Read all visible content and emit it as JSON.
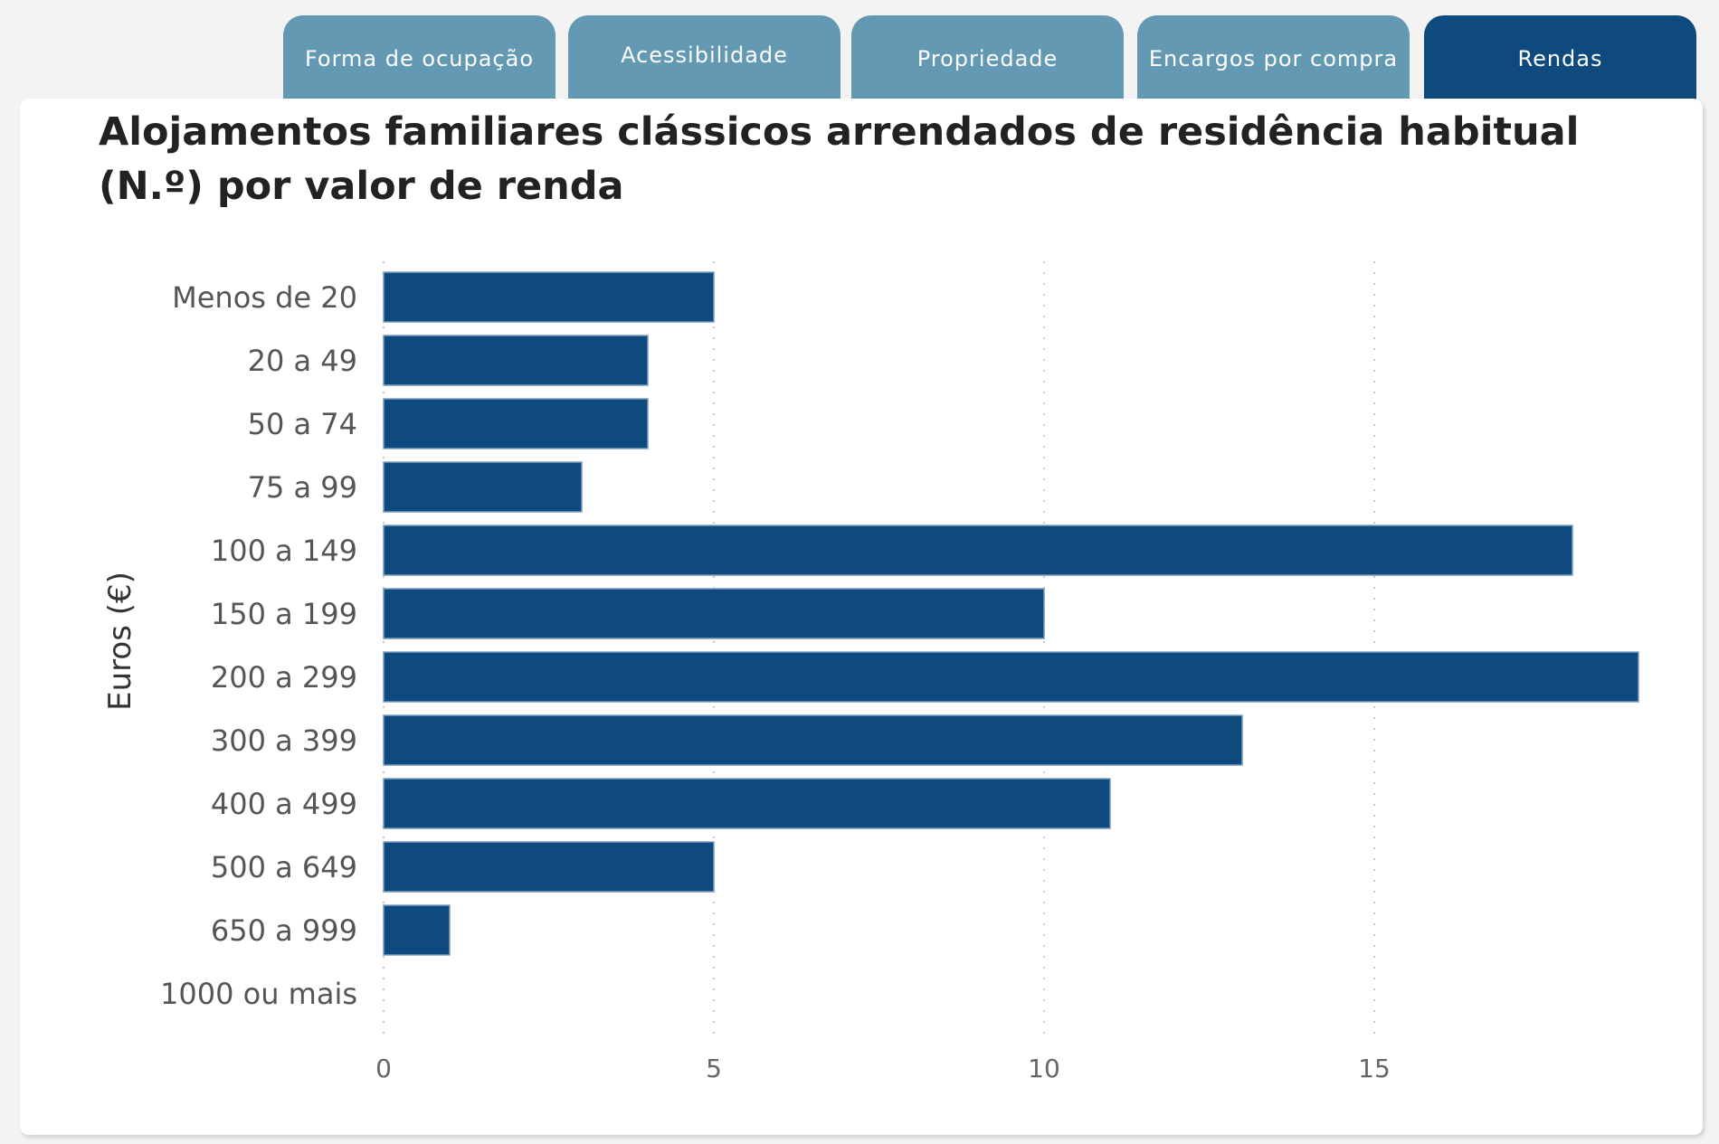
{
  "tabs": [
    {
      "label": "Forma de ocupação",
      "active": false
    },
    {
      "label": "Acessibilidade",
      "active": false
    },
    {
      "label": "Propriedade",
      "active": false
    },
    {
      "label": "Encargos por compra",
      "active": false
    },
    {
      "label": "Rendas",
      "active": true
    }
  ],
  "colors": {
    "bar": "#0e4a7e",
    "tab": "#6399b3",
    "tab_active": "#0e4a7e"
  },
  "chart_data": {
    "type": "bar",
    "orientation": "horizontal",
    "title": "Alojamentos familiares clássicos arrendados de residência habitual (N.º) por valor de renda",
    "ylabel": "Euros (€)",
    "xlabel": "",
    "categories": [
      "Menos de 20",
      "20 a 49",
      "50 a 74",
      "75 a 99",
      "100 a 149",
      "150 a 199",
      "200 a 299",
      "300 a 399",
      "400 a 499",
      "500 a 649",
      "650 a 999",
      "1000 ou mais"
    ],
    "values": [
      5,
      4,
      4,
      3,
      18,
      10,
      19,
      13,
      11,
      5,
      1,
      0
    ],
    "xticks": [
      "0",
      "5",
      "10",
      "15"
    ],
    "xlim": [
      0,
      19.2
    ],
    "grid": "vertical dotted"
  }
}
